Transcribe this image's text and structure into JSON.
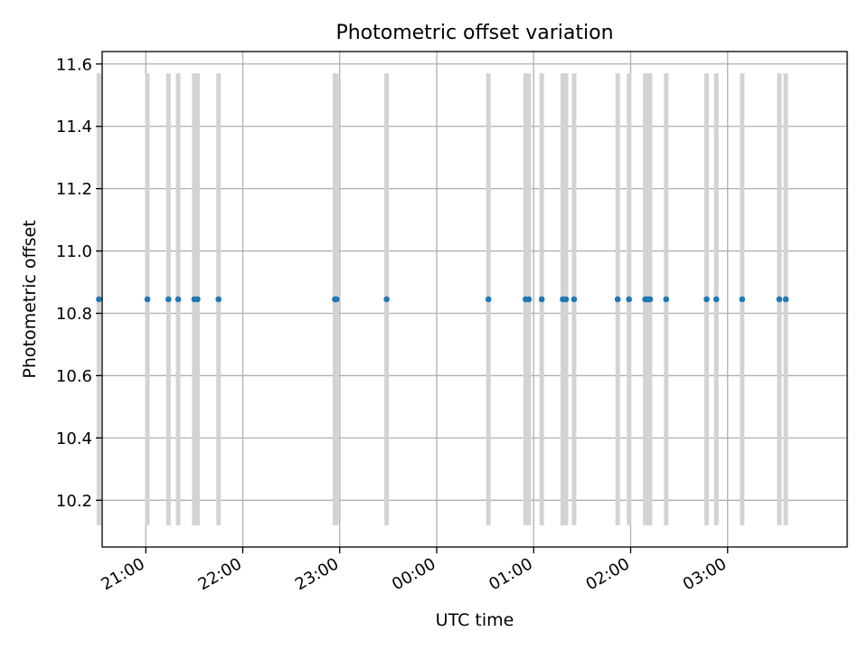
{
  "chart_data": {
    "type": "scatter",
    "title": "Photometric offset variation",
    "xlabel": "UTC time",
    "ylabel": "Photometric offset",
    "x_axis_kind": "time",
    "xlim": [
      "20:33",
      "04:14"
    ],
    "ylim": [
      10.05,
      11.64
    ],
    "x_ticks": [
      "21:00",
      "22:00",
      "23:00",
      "00:00",
      "01:00",
      "02:00",
      "03:00"
    ],
    "y_ticks": [
      "10.2",
      "10.4",
      "10.6",
      "10.8",
      "11.0",
      "11.2",
      "11.4",
      "11.6"
    ],
    "grid": true,
    "point_color": "#1f77b4",
    "errorbar_color": "#d3d3d3",
    "points": [
      {
        "time": "20:31",
        "y": 10.845,
        "err": 0.725
      },
      {
        "time": "21:01",
        "y": 10.845,
        "err": 0.725
      },
      {
        "time": "21:14",
        "y": 10.845,
        "err": 0.725
      },
      {
        "time": "21:20",
        "y": 10.845,
        "err": 0.725
      },
      {
        "time": "21:30",
        "y": 10.845,
        "err": 0.725
      },
      {
        "time": "21:32",
        "y": 10.845,
        "err": 0.725
      },
      {
        "time": "21:45",
        "y": 10.845,
        "err": 0.725
      },
      {
        "time": "22:57",
        "y": 10.845,
        "err": 0.725
      },
      {
        "time": "22:58",
        "y": 10.845,
        "err": 0.725
      },
      {
        "time": "23:29",
        "y": 10.845,
        "err": 0.725
      },
      {
        "time": "00:32",
        "y": 10.845,
        "err": 0.725
      },
      {
        "time": "00:55",
        "y": 10.845,
        "err": 0.725
      },
      {
        "time": "00:57",
        "y": 10.845,
        "err": 0.725
      },
      {
        "time": "01:05",
        "y": 10.845,
        "err": 0.725
      },
      {
        "time": "01:18",
        "y": 10.845,
        "err": 0.725
      },
      {
        "time": "01:20",
        "y": 10.845,
        "err": 0.725
      },
      {
        "time": "01:25",
        "y": 10.845,
        "err": 0.725
      },
      {
        "time": "01:52",
        "y": 10.845,
        "err": 0.725
      },
      {
        "time": "01:59",
        "y": 10.845,
        "err": 0.725
      },
      {
        "time": "02:09",
        "y": 10.845,
        "err": 0.725
      },
      {
        "time": "02:10",
        "y": 10.845,
        "err": 0.725
      },
      {
        "time": "02:11",
        "y": 10.845,
        "err": 0.725
      },
      {
        "time": "02:12",
        "y": 10.845,
        "err": 0.725
      },
      {
        "time": "02:22",
        "y": 10.845,
        "err": 0.725
      },
      {
        "time": "02:47",
        "y": 10.845,
        "err": 0.725
      },
      {
        "time": "02:53",
        "y": 10.845,
        "err": 0.725
      },
      {
        "time": "03:09",
        "y": 10.845,
        "err": 0.725
      },
      {
        "time": "03:32",
        "y": 10.845,
        "err": 0.725
      },
      {
        "time": "03:36",
        "y": 10.845,
        "err": 0.725
      }
    ]
  }
}
